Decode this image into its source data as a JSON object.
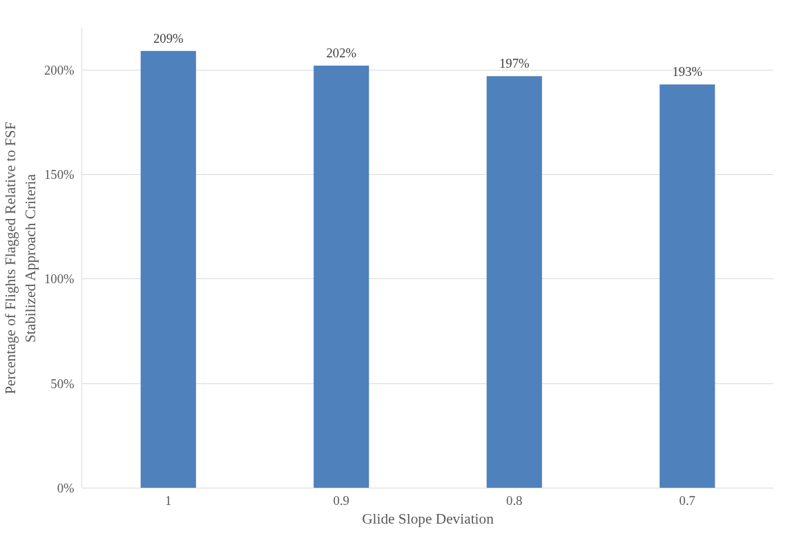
{
  "chart_data": {
    "type": "bar",
    "xlabel": "Glide Slope Deviation",
    "ylabel": "Percentage of Flights Flagged Relative to FSF\nStabilized Approach Criteria",
    "categories": [
      "1",
      "0.9",
      "0.8",
      "0.7"
    ],
    "values": [
      209,
      202,
      197,
      193
    ],
    "color": "#4f81bd",
    "value_labels": [
      "209%",
      "202%",
      "197%",
      "193%"
    ],
    "ylim": [
      0,
      220
    ],
    "yticks": [
      {
        "value": 0,
        "label": "0%"
      },
      {
        "value": 50,
        "label": "50%"
      },
      {
        "value": 100,
        "label": "100%"
      },
      {
        "value": 150,
        "label": "150%"
      },
      {
        "value": 200,
        "label": "200%"
      }
    ],
    "grid": "y"
  }
}
